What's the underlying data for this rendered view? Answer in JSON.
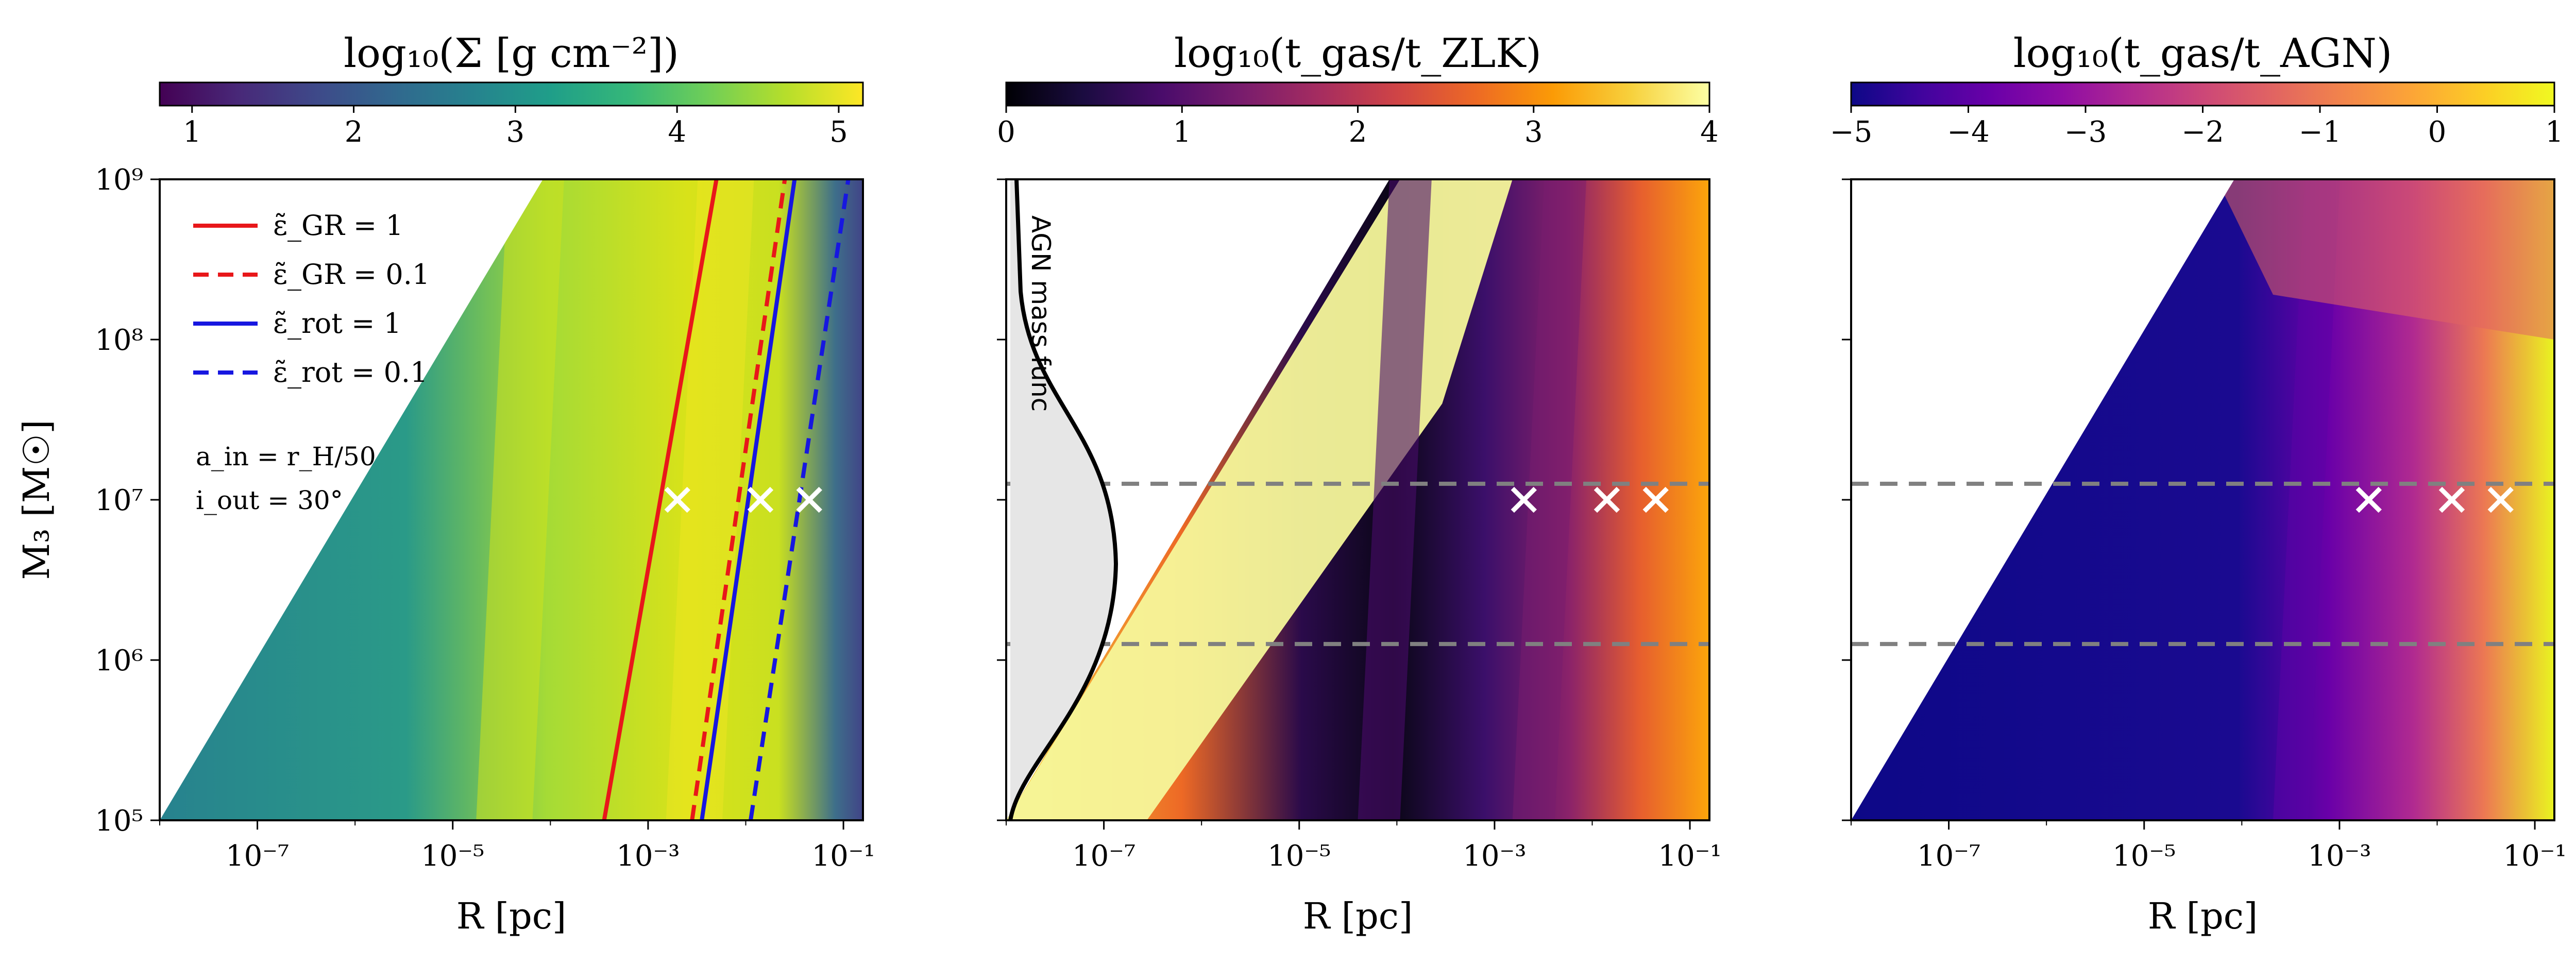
{
  "chart_data": [
    {
      "type": "heatmap",
      "panel": "left",
      "colorbar_title": "log₁₀(Σ [g cm⁻²])",
      "colormap": "viridis",
      "colorbar_range": [
        0.8,
        5.15
      ],
      "colorbar_ticks": [
        "1",
        "2",
        "3",
        "4",
        "5"
      ],
      "colorbar_tick_values": [
        1,
        2,
        3,
        4,
        5
      ],
      "xlabel": "R [pc]",
      "ylabel": "M₃ [M☉]",
      "xlim_log10": [
        -8,
        -0.8
      ],
      "ylim_log10": [
        5,
        9
      ],
      "x_ticks": [
        {
          "value": -7,
          "label": "10⁻⁷"
        },
        {
          "value": -5,
          "label": "10⁻⁵"
        },
        {
          "value": -3,
          "label": "10⁻³"
        },
        {
          "value": -1,
          "label": "10⁻¹"
        }
      ],
      "y_ticks": [
        {
          "value": 5,
          "label": "10⁵"
        },
        {
          "value": 6,
          "label": "10⁶"
        },
        {
          "value": 7,
          "label": "10⁷"
        },
        {
          "value": 8,
          "label": "10⁸"
        },
        {
          "value": 9,
          "label": "10⁹"
        }
      ],
      "lines": [
        {
          "label": "ε̃_GR = 1",
          "color": "#e8171a",
          "style": "solid",
          "points": [
            [
              -3.45,
              5
            ],
            [
              -2.3,
              9
            ]
          ]
        },
        {
          "label": "ε̃_GR = 0.1",
          "color": "#e8171a",
          "style": "dashed",
          "points": [
            [
              -2.55,
              5
            ],
            [
              -1.6,
              9
            ]
          ]
        },
        {
          "label": "ε̃_rot = 1",
          "color": "#1717e0",
          "style": "solid",
          "points": [
            [
              -2.45,
              5
            ],
            [
              -1.5,
              9
            ]
          ]
        },
        {
          "label": "ε̃_rot = 0.1",
          "color": "#1717e0",
          "style": "dashed",
          "points": [
            [
              -1.95,
              5
            ],
            [
              -0.95,
              9
            ]
          ]
        }
      ],
      "annotations": [
        "a_in = r_H/50",
        "i_out = 30°"
      ],
      "markers": [
        {
          "x_log10": -2.7,
          "y_log10": 7
        },
        {
          "x_log10": -1.85,
          "y_log10": 7
        },
        {
          "x_log10": -1.35,
          "y_log10": 7
        }
      ]
    },
    {
      "type": "heatmap",
      "panel": "middle",
      "colorbar_title": "log₁₀(t_gas/t_ZLK)",
      "colormap": "inferno",
      "colorbar_range": [
        0,
        4
      ],
      "colorbar_ticks": [
        "0",
        "1",
        "2",
        "3",
        "4"
      ],
      "colorbar_tick_values": [
        0,
        1,
        2,
        3,
        4
      ],
      "xlabel": "R [pc]",
      "xlim_log10": [
        -8,
        -0.8
      ],
      "ylim_log10": [
        5,
        9
      ],
      "x_ticks": [
        {
          "value": -7,
          "label": "10⁻⁷"
        },
        {
          "value": -5,
          "label": "10⁻⁵"
        },
        {
          "value": -3,
          "label": "10⁻³"
        },
        {
          "value": -1,
          "label": "10⁻¹"
        }
      ],
      "inset_label": "AGN mass func",
      "dashed_hlines_log10": [
        7.1,
        6.1
      ],
      "markers": [
        {
          "x_log10": -2.7,
          "y_log10": 7
        },
        {
          "x_log10": -1.85,
          "y_log10": 7
        },
        {
          "x_log10": -1.35,
          "y_log10": 7
        }
      ]
    },
    {
      "type": "heatmap",
      "panel": "right",
      "colorbar_title": "log₁₀(t_gas/t_AGN)",
      "colormap": "plasma",
      "colorbar_range": [
        -5,
        1
      ],
      "colorbar_ticks": [
        "−5",
        "−4",
        "−3",
        "−2",
        "−1",
        "0",
        "1"
      ],
      "colorbar_tick_values": [
        -5,
        -4,
        -3,
        -2,
        -1,
        0,
        1
      ],
      "xlabel": "R [pc]",
      "xlim_log10": [
        -8,
        -0.8
      ],
      "ylim_log10": [
        5,
        9
      ],
      "x_ticks": [
        {
          "value": -7,
          "label": "10⁻⁷"
        },
        {
          "value": -5,
          "label": "10⁻⁵"
        },
        {
          "value": -3,
          "label": "10⁻³"
        },
        {
          "value": -1,
          "label": "10⁻¹"
        }
      ],
      "dashed_hlines_log10": [
        7.1,
        6.1
      ],
      "markers": [
        {
          "x_log10": -2.7,
          "y_log10": 7
        },
        {
          "x_log10": -1.85,
          "y_log10": 7
        },
        {
          "x_log10": -1.35,
          "y_log10": 7
        }
      ]
    }
  ]
}
